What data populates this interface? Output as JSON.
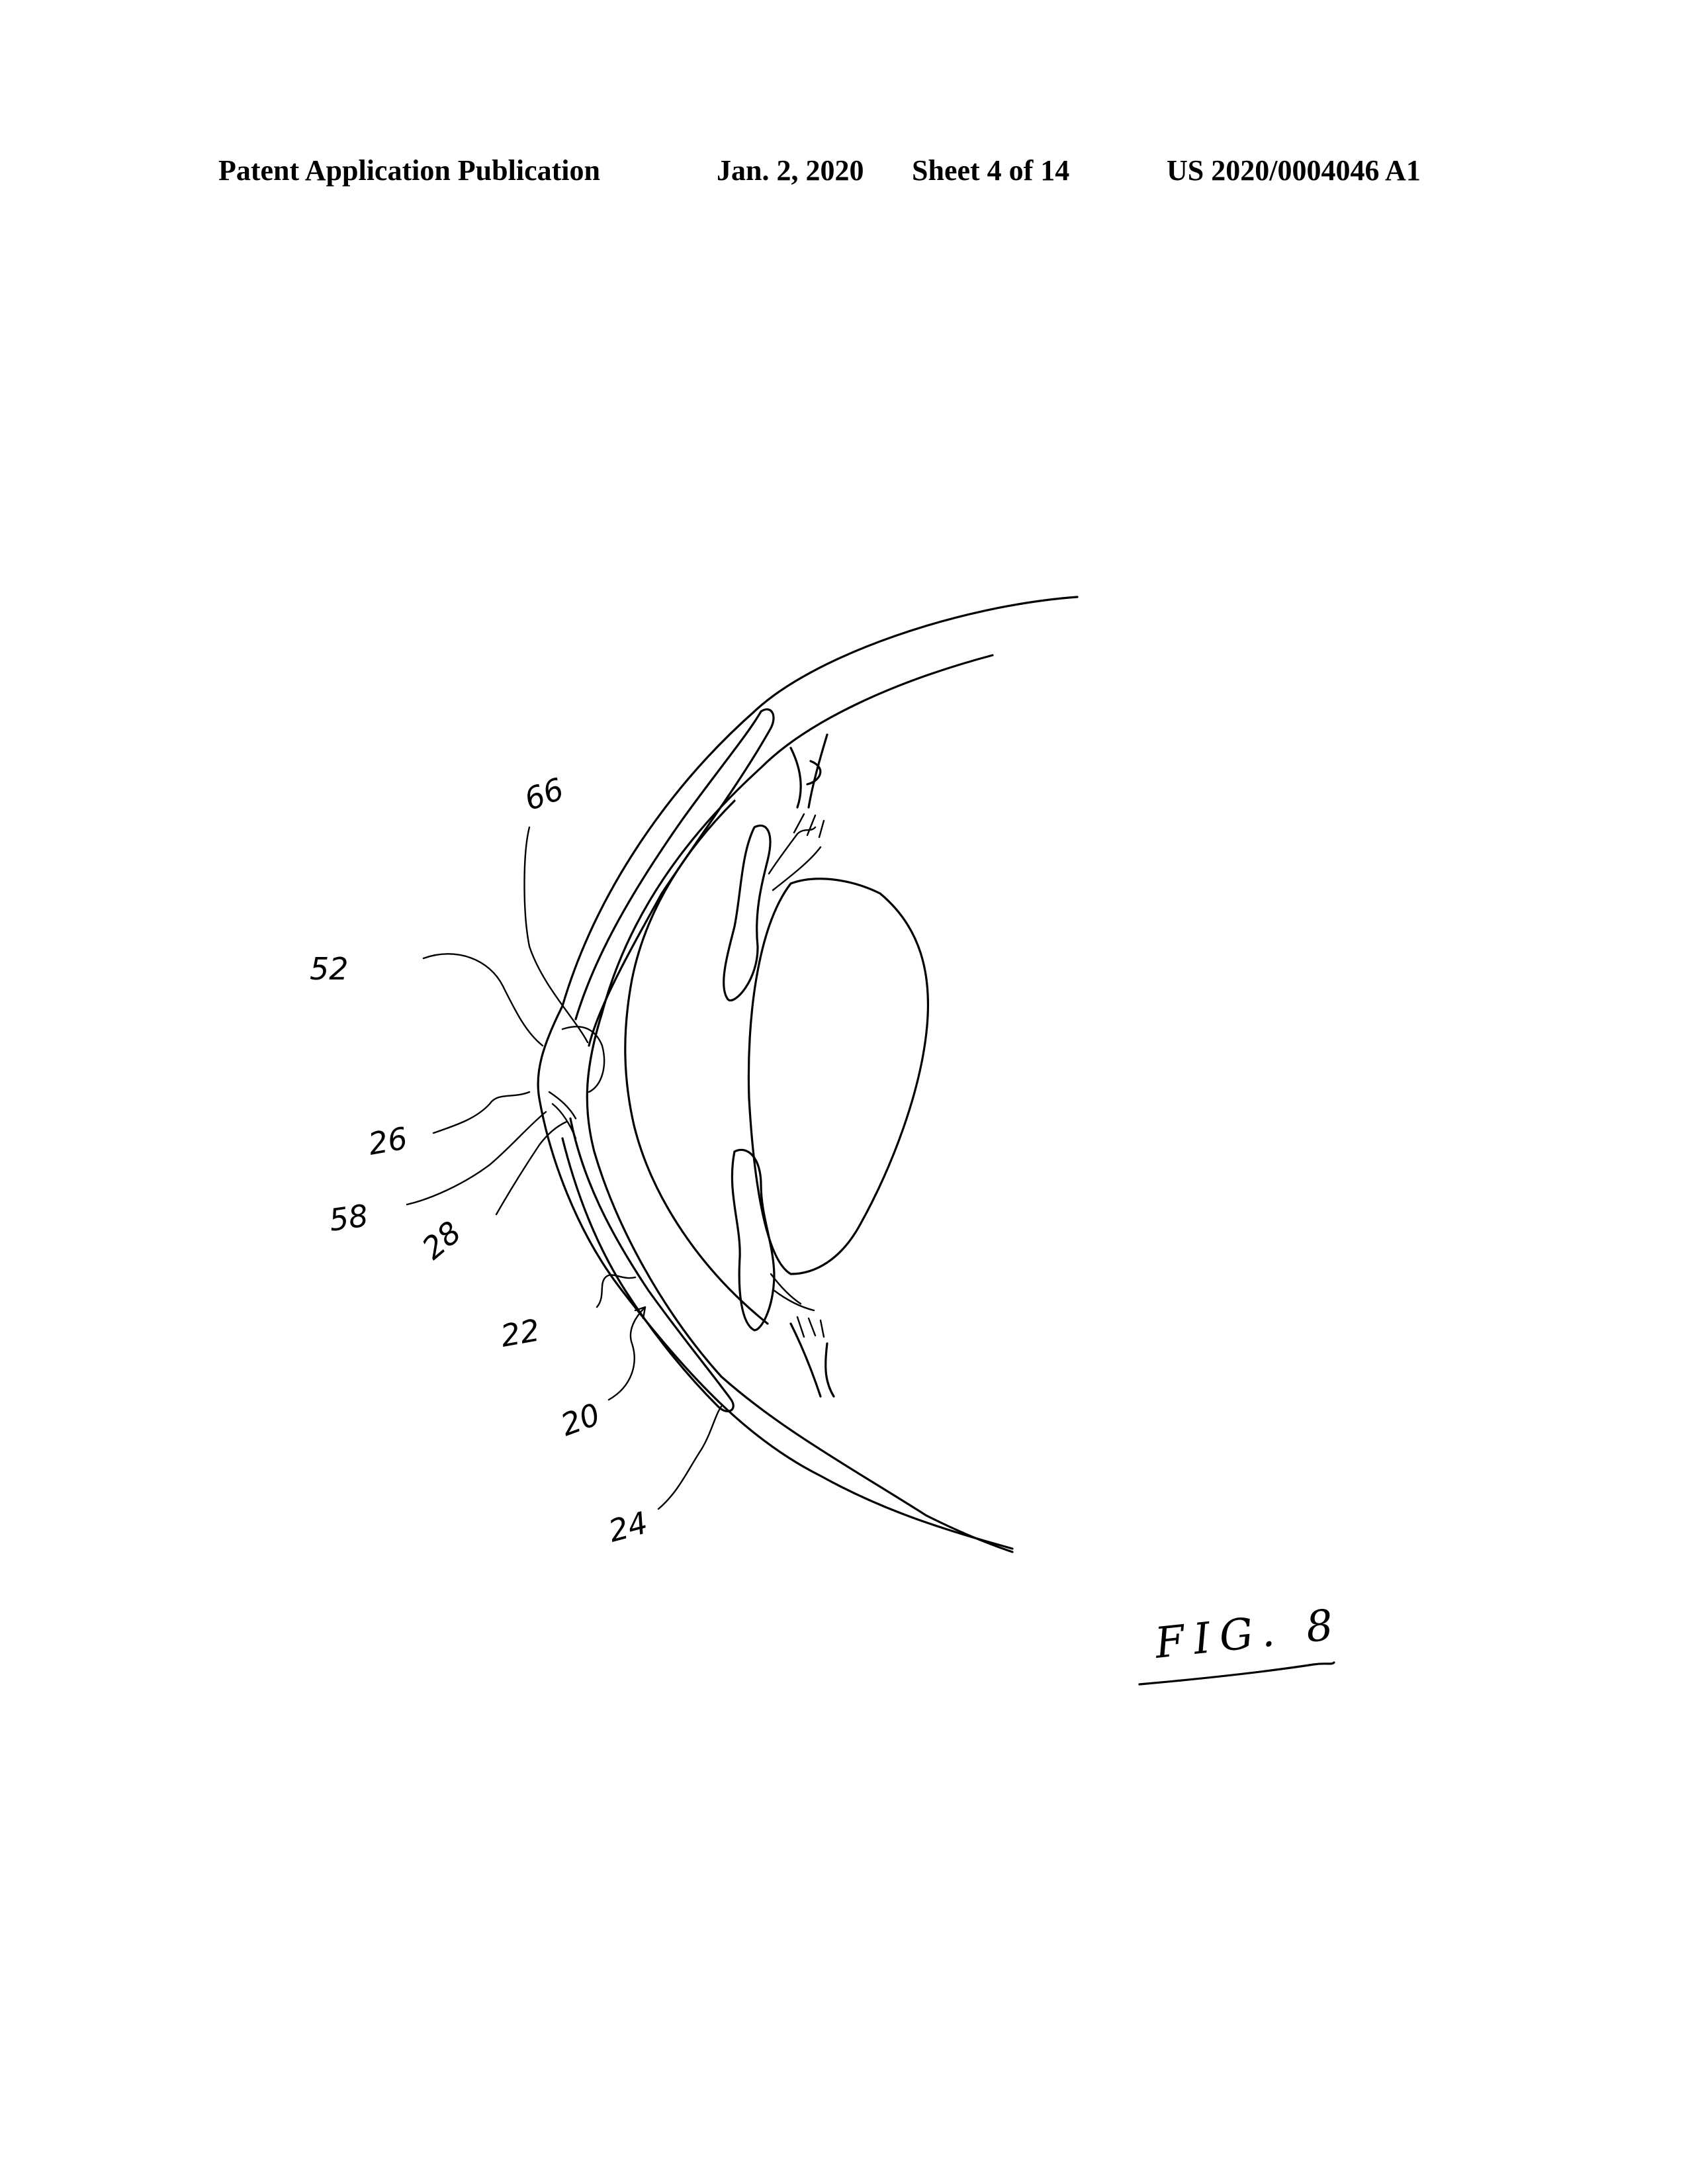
{
  "header": {
    "publication": "Patent Application Publication",
    "date": "Jan. 2, 2020",
    "sheet": "Sheet 4 of 14",
    "number": "US 2020/0004046 A1"
  },
  "figure": {
    "label": "FIG. 8",
    "reference_numerals": [
      "66",
      "52",
      "26",
      "58",
      "28",
      "22",
      "20",
      "24"
    ]
  }
}
